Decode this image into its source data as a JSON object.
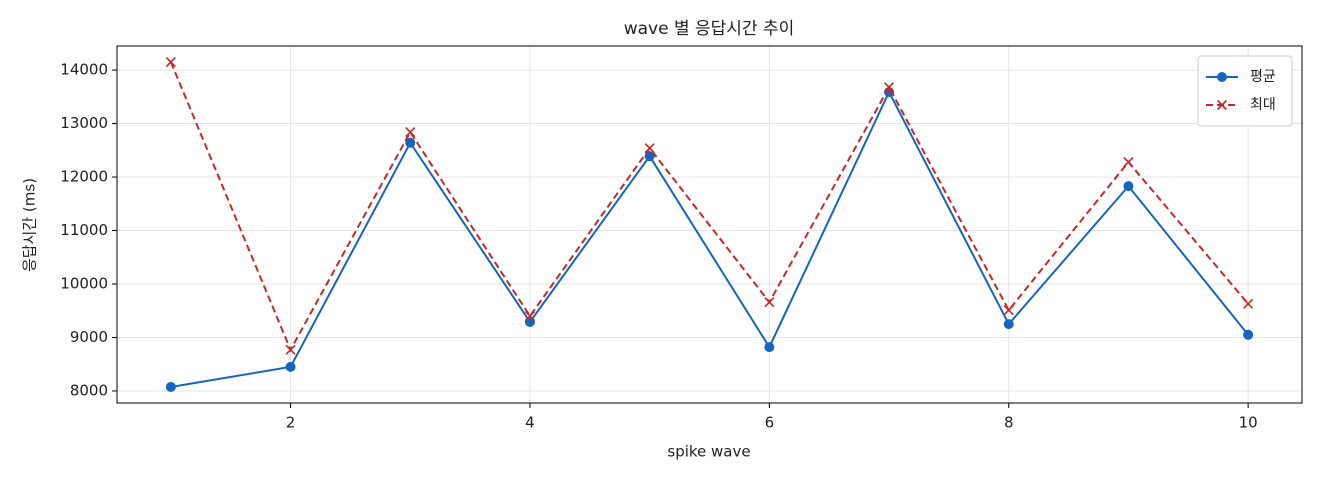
{
  "chart_data": {
    "type": "line",
    "title": "wave 별 응답시간 추이",
    "xlabel": "spike wave",
    "ylabel": "응답시간 (ms)",
    "x": [
      1,
      2,
      3,
      4,
      5,
      6,
      7,
      8,
      9,
      10
    ],
    "series": [
      {
        "name": "평균",
        "color": "#1565c0",
        "marker": "o",
        "linestyle": "solid",
        "values": [
          8075,
          8450,
          12640,
          9290,
          12390,
          8820,
          13590,
          9250,
          11830,
          9050
        ]
      },
      {
        "name": "최대",
        "color": "#c62828",
        "marker": "x",
        "linestyle": "dashed",
        "values": [
          14150,
          8770,
          12840,
          9400,
          12540,
          9660,
          13680,
          9510,
          12280,
          9630
        ]
      }
    ],
    "xlim": [
      0.55,
      10.45
    ],
    "xticks": [
      2,
      4,
      6,
      8,
      10
    ],
    "ylim": [
      7775,
      14450
    ],
    "yticks": [
      8000,
      9000,
      10000,
      11000,
      12000,
      13000,
      14000
    ],
    "grid": true,
    "legend": "upper right"
  }
}
